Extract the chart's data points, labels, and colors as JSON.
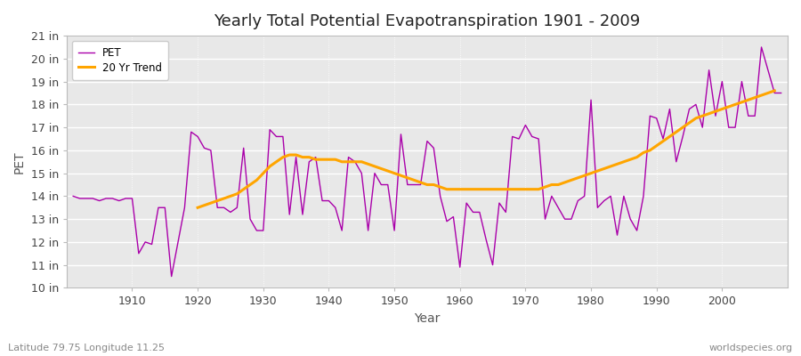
{
  "title": "Yearly Total Potential Evapotranspiration 1901 - 2009",
  "xlabel": "Year",
  "ylabel": "PET",
  "subtitle_left": "Latitude 79.75 Longitude 11.25",
  "subtitle_right": "worldspecies.org",
  "pet_color": "#AA00AA",
  "trend_color": "#FFA500",
  "bg_color": "#FFFFFF",
  "plot_bg_color": "#E8E8E8",
  "grid_color": "#FFFFFF",
  "ylim_min": 10,
  "ylim_max": 21,
  "ytick_labels": [
    "10 in",
    "11 in",
    "12 in",
    "13 in",
    "14 in",
    "15 in",
    "16 in",
    "17 in",
    "18 in",
    "19 in",
    "20 in",
    "21 in"
  ],
  "ytick_values": [
    10,
    11,
    12,
    13,
    14,
    15,
    16,
    17,
    18,
    19,
    20,
    21
  ],
  "years": [
    1901,
    1902,
    1903,
    1904,
    1905,
    1906,
    1907,
    1908,
    1909,
    1910,
    1911,
    1912,
    1913,
    1914,
    1915,
    1916,
    1917,
    1918,
    1919,
    1920,
    1921,
    1922,
    1923,
    1924,
    1925,
    1926,
    1927,
    1928,
    1929,
    1930,
    1931,
    1932,
    1933,
    1934,
    1935,
    1936,
    1937,
    1938,
    1939,
    1940,
    1941,
    1942,
    1943,
    1944,
    1945,
    1946,
    1947,
    1948,
    1949,
    1950,
    1951,
    1952,
    1953,
    1954,
    1955,
    1956,
    1957,
    1958,
    1959,
    1960,
    1961,
    1962,
    1963,
    1964,
    1965,
    1966,
    1967,
    1968,
    1969,
    1970,
    1971,
    1972,
    1973,
    1974,
    1975,
    1976,
    1977,
    1978,
    1979,
    1980,
    1981,
    1982,
    1983,
    1984,
    1985,
    1986,
    1987,
    1988,
    1989,
    1990,
    1991,
    1992,
    1993,
    1994,
    1995,
    1996,
    1997,
    1998,
    1999,
    2000,
    2001,
    2002,
    2003,
    2004,
    2005,
    2006,
    2007,
    2008,
    2009
  ],
  "pet_values": [
    14.0,
    13.9,
    13.9,
    13.9,
    13.8,
    13.9,
    13.9,
    13.8,
    13.9,
    13.9,
    11.5,
    12.0,
    11.9,
    13.5,
    13.5,
    10.5,
    12.0,
    13.5,
    16.8,
    16.6,
    16.1,
    16.0,
    13.5,
    13.5,
    13.3,
    13.5,
    16.1,
    13.0,
    12.5,
    12.5,
    16.9,
    16.6,
    16.6,
    13.2,
    15.7,
    13.2,
    15.5,
    15.7,
    13.8,
    13.8,
    13.5,
    12.5,
    15.7,
    15.5,
    15.0,
    12.5,
    15.0,
    14.5,
    14.5,
    12.5,
    16.7,
    14.5,
    14.5,
    14.5,
    16.4,
    16.1,
    14.0,
    12.9,
    13.1,
    10.9,
    13.7,
    13.3,
    13.3,
    12.1,
    11.0,
    13.7,
    13.3,
    16.6,
    16.5,
    17.1,
    16.6,
    16.5,
    13.0,
    14.0,
    13.5,
    13.0,
    13.0,
    13.8,
    14.0,
    18.2,
    13.5,
    13.8,
    14.0,
    12.3,
    14.0,
    13.0,
    12.5,
    14.0,
    17.5,
    17.4,
    16.5,
    17.8,
    15.5,
    16.6,
    17.8,
    18.0,
    17.0,
    19.5,
    17.5,
    19.0,
    17.0,
    17.0,
    19.0,
    17.5,
    17.5,
    20.5,
    19.5,
    18.5,
    18.5
  ],
  "trend_values": [
    null,
    null,
    null,
    null,
    null,
    null,
    null,
    null,
    null,
    null,
    null,
    null,
    null,
    null,
    null,
    null,
    null,
    null,
    null,
    13.5,
    13.6,
    13.7,
    13.8,
    13.9,
    14.0,
    14.1,
    14.3,
    14.5,
    14.7,
    15.0,
    15.3,
    15.5,
    15.7,
    15.8,
    15.8,
    15.7,
    15.7,
    15.6,
    15.6,
    15.6,
    15.6,
    15.5,
    15.5,
    15.5,
    15.5,
    15.4,
    15.3,
    15.2,
    15.1,
    15.0,
    14.9,
    14.8,
    14.7,
    14.6,
    14.5,
    14.5,
    14.4,
    14.3,
    14.3,
    14.3,
    14.3,
    14.3,
    14.3,
    14.3,
    14.3,
    14.3,
    14.3,
    14.3,
    14.3,
    14.3,
    14.3,
    14.3,
    14.4,
    14.5,
    14.5,
    14.6,
    14.7,
    14.8,
    14.9,
    15.0,
    15.1,
    15.2,
    15.3,
    15.4,
    15.5,
    15.6,
    15.7,
    15.9,
    16.0,
    16.2,
    16.4,
    16.6,
    16.8,
    17.0,
    17.2,
    17.4,
    17.5,
    17.6,
    17.7,
    17.8,
    17.9,
    18.0,
    18.1,
    18.2,
    18.3,
    18.4,
    18.5,
    18.6
  ]
}
